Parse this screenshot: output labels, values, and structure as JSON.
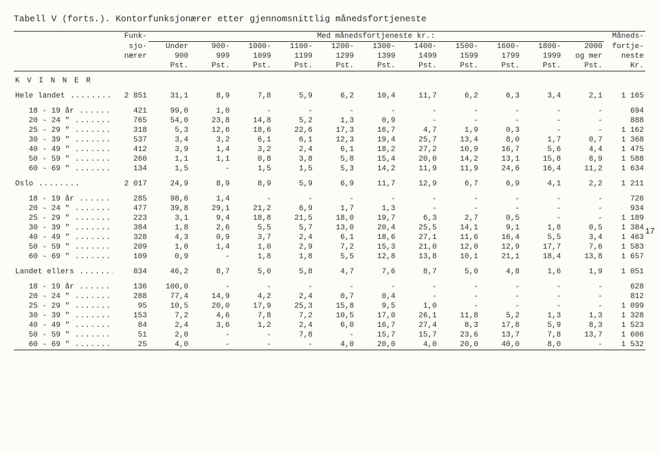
{
  "title": "Tabell V (forts.).  Kontorfunksjonærer etter gjennomsnittlig månedsfortjeneste",
  "stub_header": [
    "Funk-",
    "sjo-",
    "nærer"
  ],
  "spanner": "Med månedsfortjeneste kr.:",
  "last_col_header": [
    "Måneds-",
    "fortje-",
    "neste"
  ],
  "col_headers": [
    [
      "Under",
      "900",
      "Pst."
    ],
    [
      "900-",
      "999",
      "Pst."
    ],
    [
      "1000-",
      "1099",
      "Pst."
    ],
    [
      "1100-",
      "1199",
      "Pst."
    ],
    [
      "1200-",
      "1299",
      "Pst."
    ],
    [
      "1300-",
      "1399",
      "Pst."
    ],
    [
      "1400-",
      "1499",
      "Pst."
    ],
    [
      "1500-",
      "1599",
      "Pst."
    ],
    [
      "1600-",
      "1799",
      "Pst."
    ],
    [
      "1800-",
      "1999",
      "Pst."
    ],
    [
      "2000",
      "og mer",
      "Pst."
    ]
  ],
  "last_unit": "Kr.",
  "section1": "K V I N N E R",
  "groups": [
    {
      "head": {
        "label": "Hele landet",
        "n": "2 851",
        "v": [
          "31,1",
          "8,9",
          "7,8",
          "5,9",
          "6,2",
          "10,4",
          "11,7",
          "6,2",
          "6,3",
          "3,4",
          "2,1"
        ],
        "last": "1 165"
      },
      "rows": [
        {
          "label": "18 - 19 år",
          "n": "421",
          "v": [
            "99,0",
            "1,0",
            "-",
            "-",
            "-",
            "-",
            "-",
            "-",
            "-",
            "-",
            "-"
          ],
          "last": "694"
        },
        {
          "label": "20 - 24 \"",
          "n": "765",
          "v": [
            "54,0",
            "23,8",
            "14,8",
            "5,2",
            "1,3",
            "0,9",
            "-",
            "-",
            "-",
            "-",
            "-"
          ],
          "last": "888"
        },
        {
          "label": "25 - 29 \"",
          "n": "318",
          "v": [
            "5,3",
            "12,6",
            "18,6",
            "22,6",
            "17,3",
            "16,7",
            "4,7",
            "1,9",
            "0,3",
            "-",
            "-"
          ],
          "last": "1 162"
        },
        {
          "label": "30 - 39 \"",
          "n": "537",
          "v": [
            "3,4",
            "3,2",
            "6,1",
            "6,1",
            "12,3",
            "19,4",
            "25,7",
            "13,4",
            "8,0",
            "1,7",
            "0,7"
          ],
          "last": "1 368"
        },
        {
          "label": "40 - 49 \"",
          "n": "412",
          "v": [
            "3,9",
            "1,4",
            "3,2",
            "2,4",
            "6,1",
            "18,2",
            "27,2",
            "10,9",
            "16,7",
            "5,6",
            "4,4"
          ],
          "last": "1 475"
        },
        {
          "label": "50 - 59 \"",
          "n": "260",
          "v": [
            "1,1",
            "1,1",
            "0,8",
            "3,8",
            "5,8",
            "15,4",
            "20,0",
            "14,2",
            "13,1",
            "15,8",
            "8,9"
          ],
          "last": "1 588"
        },
        {
          "label": "60 - 69 \"",
          "n": "134",
          "v": [
            "1,5",
            "-",
            "1,5",
            "1,5",
            "5,3",
            "14,2",
            "11,9",
            "11,9",
            "24,6",
            "16,4",
            "11,2"
          ],
          "last": "1 634"
        }
      ]
    },
    {
      "head": {
        "label": "Oslo",
        "n": "2 017",
        "v": [
          "24,9",
          "8,9",
          "8,9",
          "5,9",
          "6,9",
          "11,7",
          "12,9",
          "6,7",
          "6,9",
          "4,1",
          "2,2"
        ],
        "last": "1 211"
      },
      "rows": [
        {
          "label": "18 - 19 år",
          "n": "285",
          "v": [
            "98,6",
            "1,4",
            "-",
            "-",
            "-",
            "-",
            "-",
            "-",
            "-",
            "-",
            "-"
          ],
          "last": "726"
        },
        {
          "label": "20 - 24 \"",
          "n": "477",
          "v": [
            "39,8",
            "29,1",
            "21,2",
            "6,9",
            "1,7",
            "1,3",
            "-",
            "-",
            "-",
            "-",
            "-"
          ],
          "last": "934"
        },
        {
          "label": "25 - 29 \"",
          "n": "223",
          "v": [
            "3,1",
            "9,4",
            "18,8",
            "21,5",
            "18,0",
            "19,7",
            "6,3",
            "2,7",
            "0,5",
            "-",
            "-"
          ],
          "last": "1 189"
        },
        {
          "label": "30 - 39 \"",
          "n": "384",
          "v": [
            "1,8",
            "2,6",
            "5,5",
            "5,7",
            "13,0",
            "20,4",
            "25,5",
            "14,1",
            "9,1",
            "1,8",
            "0,5"
          ],
          "last": "1 384"
        },
        {
          "label": "40 - 49 \"",
          "n": "328",
          "v": [
            "4,3",
            "0,9",
            "3,7",
            "2,4",
            "6,1",
            "18,6",
            "27,1",
            "11,6",
            "16,4",
            "5,5",
            "3,4"
          ],
          "last": "1 463"
        },
        {
          "label": "50 - 59 \"",
          "n": "209",
          "v": [
            "1,0",
            "1,4",
            "1,0",
            "2,9",
            "7,2",
            "15,3",
            "21,0",
            "12,0",
            "12,9",
            "17,7",
            "7,6"
          ],
          "last": "1 583"
        },
        {
          "label": "60 - 69 \"",
          "n": "109",
          "v": [
            "0,9",
            "-",
            "1,8",
            "1,8",
            "5,5",
            "12,8",
            "13,8",
            "10,1",
            "21,1",
            "18,4",
            "13,8"
          ],
          "last": "1 657"
        }
      ]
    },
    {
      "head": {
        "label": "Landet ellers",
        "n": "834",
        "v": [
          "46,2",
          "8,7",
          "5,0",
          "5,8",
          "4,7",
          "7,6",
          "8,7",
          "5,0",
          "4,8",
          "1,6",
          "1,9"
        ],
        "last": "1 051"
      },
      "rows": [
        {
          "label": "18 - 19 år",
          "n": "136",
          "v": [
            "100,0",
            "-",
            "-",
            "-",
            "-",
            "-",
            "-",
            "-",
            "-",
            "-",
            "-"
          ],
          "last": "628"
        },
        {
          "label": "20 - 24 \"",
          "n": "288",
          "v": [
            "77,4",
            "14,9",
            "4,2",
            "2,4",
            "0,7",
            "0,4",
            "-",
            "-",
            "-",
            "-",
            "-"
          ],
          "last": "812"
        },
        {
          "label": "25 - 29 \"",
          "n": "95",
          "v": [
            "10,5",
            "20,0",
            "17,9",
            "25,3",
            "15,8",
            "9,5",
            "1,0",
            "-",
            "-",
            "-",
            "-"
          ],
          "last": "1 099"
        },
        {
          "label": "30 - 39 \"",
          "n": "153",
          "v": [
            "7,2",
            "4,6",
            "7,8",
            "7,2",
            "10,5",
            "17,0",
            "26,1",
            "11,8",
            "5,2",
            "1,3",
            "1,3"
          ],
          "last": "1 328"
        },
        {
          "label": "40 - 49 \"",
          "n": "84",
          "v": [
            "2,4",
            "3,6",
            "1,2",
            "2,4",
            "6,0",
            "16,7",
            "27,4",
            "8,3",
            "17,8",
            "5,9",
            "8,3"
          ],
          "last": "1 523"
        },
        {
          "label": "50 - 59 \"",
          "n": "51",
          "v": [
            "2,0",
            "-",
            "-",
            "7,8",
            "-",
            "15,7",
            "15,7",
            "23,6",
            "13,7",
            "7,8",
            "13,7"
          ],
          "last": "1 606"
        },
        {
          "label": "60 - 69 \"",
          "n": "25",
          "v": [
            "4,0",
            "-",
            "-",
            "-",
            "4,0",
            "20,0",
            "4,0",
            "20,0",
            "40,0",
            "8,0",
            "-"
          ],
          "last": "1 532"
        }
      ]
    }
  ],
  "side_note": "17"
}
